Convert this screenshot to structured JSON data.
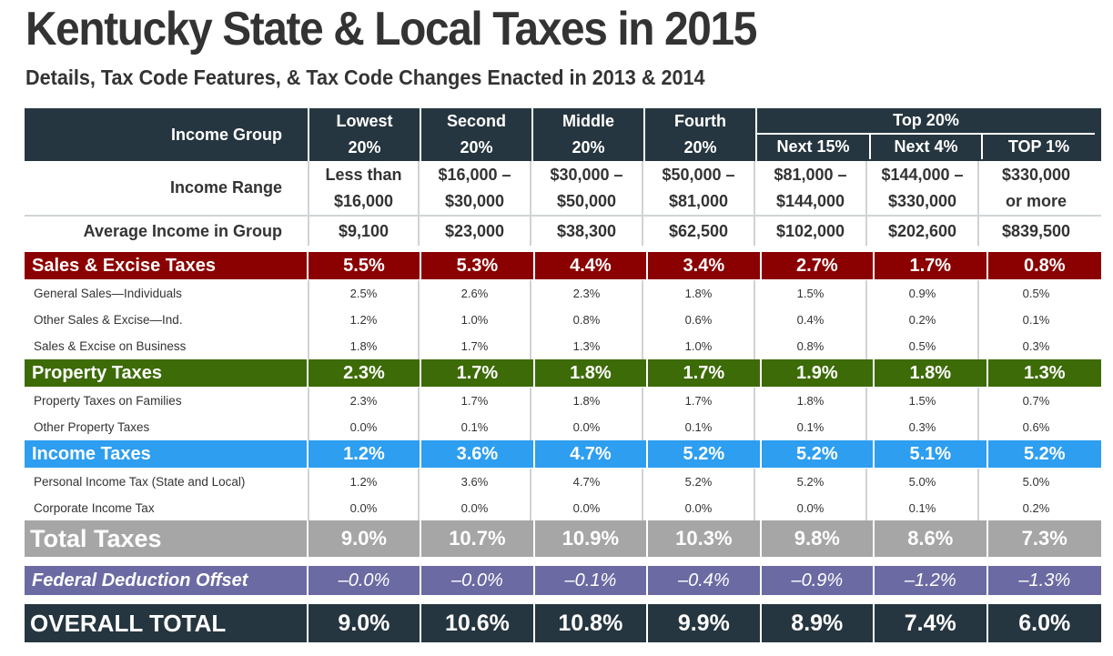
{
  "title": "Kentucky State & Local Taxes in 2015",
  "subtitle": "Details, Tax Code Features, & Tax Code Changes Enacted in 2013 & 2014",
  "colors": {
    "header_bg": "#263640",
    "sales_bg": "#8b0000",
    "property_bg": "#3d6b08",
    "income_bg": "#2d9ef0",
    "total_bg": "#a6a6a6",
    "federal_bg": "#6b6aa3",
    "overall_bg": "#263640"
  },
  "header": {
    "income_group_label": "Income Group",
    "groups": [
      {
        "line1": "Lowest",
        "line2": "20%"
      },
      {
        "line1": "Second",
        "line2": "20%"
      },
      {
        "line1": "Middle",
        "line2": "20%"
      },
      {
        "line1": "Fourth",
        "line2": "20%"
      }
    ],
    "top20_label": "Top 20%",
    "top_sub": [
      "Next 15%",
      "Next 4%",
      "TOP 1%"
    ]
  },
  "income_range": {
    "label": "Income Range",
    "values": [
      {
        "line1": "Less than",
        "line2": "$16,000"
      },
      {
        "line1": "$16,000 –",
        "line2": "$30,000"
      },
      {
        "line1": "$30,000 –",
        "line2": "$50,000"
      },
      {
        "line1": "$50,000 –",
        "line2": "$81,000"
      },
      {
        "line1": "$81,000 –",
        "line2": "$144,000"
      },
      {
        "line1": "$144,000 –",
        "line2": "$330,000"
      },
      {
        "line1": "$330,000",
        "line2": "or more"
      }
    ]
  },
  "average_income": {
    "label": "Average Income in Group",
    "values": [
      "$9,100",
      "$23,000",
      "$38,300",
      "$62,500",
      "$102,000",
      "$202,600",
      "$839,500"
    ]
  },
  "sales": {
    "label": "Sales & Excise Taxes",
    "values": [
      "5.5%",
      "5.3%",
      "4.4%",
      "3.4%",
      "2.7%",
      "1.7%",
      "0.8%"
    ],
    "details": [
      {
        "label": "General Sales—Individuals",
        "values": [
          "2.5%",
          "2.6%",
          "2.3%",
          "1.8%",
          "1.5%",
          "0.9%",
          "0.5%"
        ]
      },
      {
        "label": "Other Sales & Excise—Ind.",
        "values": [
          "1.2%",
          "1.0%",
          "0.8%",
          "0.6%",
          "0.4%",
          "0.2%",
          "0.1%"
        ]
      },
      {
        "label": "Sales & Excise on Business",
        "values": [
          "1.8%",
          "1.7%",
          "1.3%",
          "1.0%",
          "0.8%",
          "0.5%",
          "0.3%"
        ]
      }
    ]
  },
  "property": {
    "label": "Property Taxes",
    "values": [
      "2.3%",
      "1.7%",
      "1.8%",
      "1.7%",
      "1.9%",
      "1.8%",
      "1.3%"
    ],
    "details": [
      {
        "label": "Property Taxes on Families",
        "values": [
          "2.3%",
          "1.7%",
          "1.8%",
          "1.7%",
          "1.8%",
          "1.5%",
          "0.7%"
        ]
      },
      {
        "label": "Other Property Taxes",
        "values": [
          "0.0%",
          "0.1%",
          "0.0%",
          "0.1%",
          "0.1%",
          "0.3%",
          "0.6%"
        ]
      }
    ]
  },
  "income": {
    "label": "Income Taxes",
    "values": [
      "1.2%",
      "3.6%",
      "4.7%",
      "5.2%",
      "5.2%",
      "5.1%",
      "5.2%"
    ],
    "details": [
      {
        "label": "Personal Income Tax (State and Local)",
        "values": [
          "1.2%",
          "3.6%",
          "4.7%",
          "5.2%",
          "5.2%",
          "5.0%",
          "5.0%"
        ]
      },
      {
        "label": "Corporate Income Tax",
        "values": [
          "0.0%",
          "0.0%",
          "0.0%",
          "0.0%",
          "0.0%",
          "0.1%",
          "0.2%"
        ]
      }
    ]
  },
  "total": {
    "label": "Total Taxes",
    "values": [
      "9.0%",
      "10.7%",
      "10.9%",
      "10.3%",
      "9.8%",
      "8.6%",
      "7.3%"
    ]
  },
  "federal": {
    "label": "Federal Deduction Offset",
    "values": [
      "–0.0%",
      "–0.0%",
      "–0.1%",
      "–0.4%",
      "–0.9%",
      "–1.2%",
      "–1.3%"
    ]
  },
  "overall": {
    "label": "OVERALL TOTAL",
    "values": [
      "9.0%",
      "10.6%",
      "10.8%",
      "9.9%",
      "8.9%",
      "7.4%",
      "6.0%"
    ]
  }
}
